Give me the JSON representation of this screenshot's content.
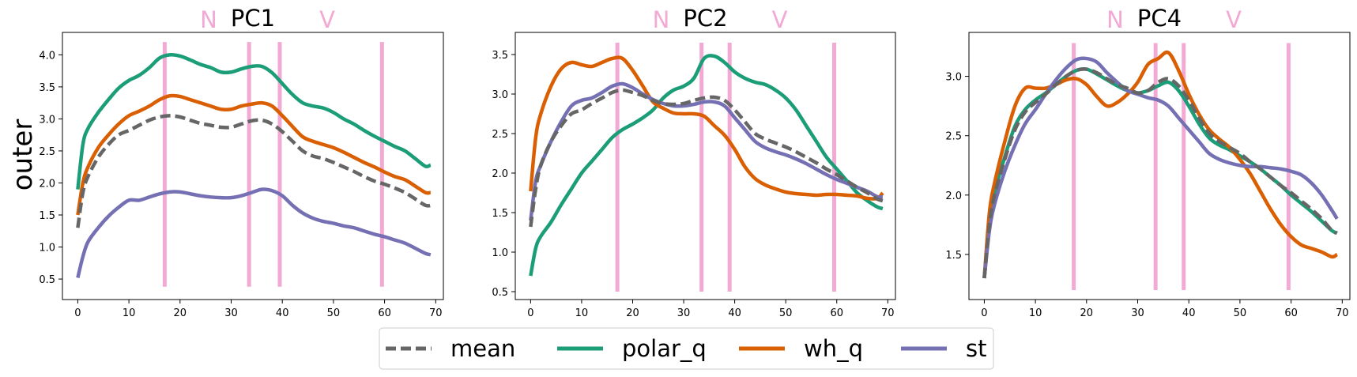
{
  "figure": {
    "ylabel": "outer",
    "annotation_letters": [
      "N",
      "V"
    ],
    "colors": {
      "mean": "#666666",
      "polar_q": "#1b9e77",
      "wh_q": "#d95f02",
      "st": "#7570b3",
      "marker": "#f2a9d4"
    }
  },
  "chart_data": [
    {
      "type": "line",
      "title": "PC1",
      "xlim": [
        -3,
        71.5
      ],
      "ylim": [
        0.18,
        4.35
      ],
      "xticks": [
        0,
        10,
        20,
        30,
        40,
        50,
        60,
        70
      ],
      "yticks": [
        0.5,
        1.0,
        1.5,
        2.0,
        2.5,
        3.0,
        3.5,
        4.0
      ],
      "ytick_labels": [
        "0.5",
        "1.0",
        "1.5",
        "2.0",
        "2.5",
        "3.0",
        "3.5",
        "4.0"
      ],
      "vlines": [
        17,
        33.5,
        39.5,
        59.5
      ],
      "vline_range": [
        0.38,
        4.2
      ],
      "x": [
        0,
        1,
        2,
        4,
        6,
        8,
        10,
        12,
        14,
        16,
        18,
        20,
        22,
        24,
        26,
        28,
        30,
        32,
        34,
        36,
        38,
        40,
        42,
        44,
        46,
        48,
        50,
        52,
        54,
        56,
        58,
        60,
        62,
        64,
        66,
        68,
        69
      ],
      "series": [
        {
          "name": "mean",
          "style": "dashed",
          "values": [
            1.3,
            1.85,
            2.1,
            2.4,
            2.6,
            2.75,
            2.82,
            2.9,
            2.98,
            3.03,
            3.05,
            3.03,
            2.98,
            2.93,
            2.9,
            2.87,
            2.87,
            2.92,
            2.97,
            2.98,
            2.92,
            2.8,
            2.65,
            2.5,
            2.42,
            2.38,
            2.32,
            2.25,
            2.18,
            2.1,
            2.03,
            1.98,
            1.92,
            1.85,
            1.75,
            1.65,
            1.65
          ]
        },
        {
          "name": "polar_q",
          "style": "solid",
          "values": [
            1.9,
            2.6,
            2.85,
            3.1,
            3.3,
            3.48,
            3.6,
            3.68,
            3.8,
            3.95,
            4.0,
            3.98,
            3.92,
            3.85,
            3.8,
            3.73,
            3.73,
            3.78,
            3.82,
            3.82,
            3.72,
            3.55,
            3.38,
            3.25,
            3.2,
            3.17,
            3.1,
            3.0,
            2.92,
            2.82,
            2.73,
            2.65,
            2.57,
            2.5,
            2.38,
            2.26,
            2.28
          ]
        },
        {
          "name": "wh_q",
          "style": "solid",
          "values": [
            1.5,
            2.0,
            2.25,
            2.55,
            2.75,
            2.92,
            3.05,
            3.12,
            3.2,
            3.3,
            3.36,
            3.35,
            3.3,
            3.25,
            3.2,
            3.15,
            3.15,
            3.2,
            3.23,
            3.25,
            3.2,
            3.05,
            2.88,
            2.72,
            2.65,
            2.6,
            2.55,
            2.48,
            2.4,
            2.32,
            2.25,
            2.17,
            2.1,
            2.05,
            1.95,
            1.85,
            1.85
          ]
        },
        {
          "name": "st",
          "style": "solid",
          "values": [
            0.52,
            0.85,
            1.08,
            1.3,
            1.48,
            1.62,
            1.73,
            1.73,
            1.78,
            1.83,
            1.86,
            1.86,
            1.83,
            1.8,
            1.78,
            1.77,
            1.77,
            1.8,
            1.85,
            1.9,
            1.88,
            1.8,
            1.65,
            1.53,
            1.45,
            1.4,
            1.37,
            1.33,
            1.3,
            1.25,
            1.2,
            1.16,
            1.11,
            1.06,
            0.98,
            0.9,
            0.88
          ]
        }
      ]
    },
    {
      "type": "line",
      "title": "PC2",
      "xlim": [
        -3,
        71.5
      ],
      "ylim": [
        0.4,
        3.78
      ],
      "xticks": [
        0,
        10,
        20,
        30,
        40,
        50,
        60,
        70
      ],
      "yticks": [
        0.5,
        1.0,
        1.5,
        2.0,
        2.5,
        3.0,
        3.5
      ],
      "ytick_labels": [
        "0.5",
        "1.0",
        "1.5",
        "2.0",
        "2.5",
        "3.0",
        "3.5"
      ],
      "vlines": [
        17,
        33.5,
        39,
        59.5
      ],
      "vline_range": [
        0.5,
        3.65
      ],
      "x": [
        0,
        1,
        2,
        4,
        6,
        8,
        10,
        12,
        14,
        16,
        18,
        20,
        22,
        24,
        26,
        28,
        30,
        32,
        34,
        36,
        38,
        40,
        42,
        44,
        46,
        48,
        50,
        52,
        54,
        56,
        58,
        60,
        62,
        64,
        66,
        68,
        69
      ],
      "series": [
        {
          "name": "mean",
          "style": "dashed",
          "values": [
            1.32,
            1.8,
            2.1,
            2.4,
            2.6,
            2.75,
            2.8,
            2.88,
            2.95,
            3.02,
            3.05,
            3.02,
            2.98,
            2.92,
            2.88,
            2.87,
            2.88,
            2.92,
            2.95,
            2.96,
            2.92,
            2.8,
            2.65,
            2.5,
            2.43,
            2.38,
            2.33,
            2.27,
            2.2,
            2.13,
            2.05,
            1.98,
            1.9,
            1.82,
            1.75,
            1.67,
            1.65
          ]
        },
        {
          "name": "polar_q",
          "style": "solid",
          "values": [
            0.7,
            1.05,
            1.2,
            1.38,
            1.6,
            1.8,
            2.0,
            2.15,
            2.3,
            2.45,
            2.55,
            2.62,
            2.7,
            2.8,
            2.95,
            3.05,
            3.1,
            3.2,
            3.45,
            3.48,
            3.4,
            3.28,
            3.2,
            3.15,
            3.12,
            3.05,
            2.95,
            2.8,
            2.6,
            2.4,
            2.2,
            2.05,
            1.9,
            1.75,
            1.65,
            1.57,
            1.55
          ]
        },
        {
          "name": "wh_q",
          "style": "solid",
          "values": [
            1.77,
            2.45,
            2.75,
            3.1,
            3.32,
            3.4,
            3.37,
            3.35,
            3.4,
            3.45,
            3.45,
            3.3,
            3.1,
            2.9,
            2.82,
            2.76,
            2.75,
            2.75,
            2.72,
            2.6,
            2.48,
            2.3,
            2.08,
            1.93,
            1.85,
            1.8,
            1.76,
            1.74,
            1.73,
            1.72,
            1.73,
            1.73,
            1.72,
            1.71,
            1.68,
            1.68,
            1.75
          ]
        },
        {
          "name": "st",
          "style": "solid",
          "values": [
            1.4,
            1.9,
            2.1,
            2.4,
            2.65,
            2.85,
            2.92,
            2.95,
            3.02,
            3.1,
            3.13,
            3.08,
            3.0,
            2.93,
            2.88,
            2.85,
            2.85,
            2.87,
            2.9,
            2.9,
            2.85,
            2.7,
            2.55,
            2.4,
            2.32,
            2.27,
            2.23,
            2.18,
            2.12,
            2.05,
            1.98,
            1.92,
            1.87,
            1.82,
            1.77,
            1.7,
            1.7
          ]
        }
      ]
    },
    {
      "type": "line",
      "title": "PC4",
      "xlim": [
        -3,
        71.5
      ],
      "ylim": [
        1.12,
        3.37
      ],
      "xticks": [
        0,
        10,
        20,
        30,
        40,
        50,
        60,
        70
      ],
      "yticks": [
        1.5,
        2.0,
        2.5,
        3.0
      ],
      "ytick_labels": [
        "1.5",
        "2.0",
        "2.5",
        "3.0"
      ],
      "vlines": [
        17.5,
        33.5,
        39,
        59.5
      ],
      "vline_range": [
        1.2,
        3.28
      ],
      "x": [
        0,
        1,
        2,
        4,
        6,
        8,
        10,
        12,
        14,
        16,
        18,
        20,
        22,
        24,
        26,
        28,
        30,
        32,
        34,
        36,
        38,
        40,
        42,
        44,
        46,
        48,
        50,
        52,
        54,
        56,
        58,
        60,
        62,
        64,
        66,
        68,
        69
      ],
      "series": [
        {
          "name": "mean",
          "style": "dashed",
          "values": [
            1.3,
            1.75,
            2.0,
            2.3,
            2.55,
            2.7,
            2.78,
            2.85,
            2.93,
            3.0,
            3.05,
            3.06,
            3.03,
            2.98,
            2.93,
            2.9,
            2.86,
            2.88,
            2.95,
            2.98,
            2.92,
            2.8,
            2.65,
            2.52,
            2.45,
            2.4,
            2.35,
            2.28,
            2.22,
            2.15,
            2.08,
            2.02,
            1.95,
            1.88,
            1.8,
            1.7,
            1.68
          ]
        },
        {
          "name": "polar_q",
          "style": "solid",
          "values": [
            1.3,
            1.75,
            2.02,
            2.32,
            2.58,
            2.72,
            2.8,
            2.86,
            2.93,
            3.0,
            3.05,
            3.06,
            3.02,
            2.97,
            2.92,
            2.88,
            2.86,
            2.88,
            2.92,
            2.95,
            2.88,
            2.75,
            2.6,
            2.48,
            2.42,
            2.38,
            2.33,
            2.28,
            2.22,
            2.15,
            2.08,
            2.0,
            1.93,
            1.86,
            1.78,
            1.7,
            1.68
          ]
        },
        {
          "name": "wh_q",
          "style": "solid",
          "values": [
            1.3,
            1.85,
            2.1,
            2.45,
            2.75,
            2.9,
            2.9,
            2.9,
            2.93,
            2.97,
            2.98,
            2.93,
            2.83,
            2.75,
            2.78,
            2.85,
            2.95,
            3.1,
            3.15,
            3.2,
            3.05,
            2.85,
            2.68,
            2.55,
            2.47,
            2.4,
            2.3,
            2.18,
            2.03,
            1.88,
            1.75,
            1.65,
            1.58,
            1.55,
            1.52,
            1.48,
            1.5
          ]
        },
        {
          "name": "st",
          "style": "solid",
          "values": [
            1.3,
            1.7,
            1.92,
            2.2,
            2.42,
            2.6,
            2.72,
            2.85,
            2.97,
            3.07,
            3.14,
            3.15,
            3.12,
            3.03,
            2.95,
            2.88,
            2.85,
            2.82,
            2.8,
            2.75,
            2.65,
            2.55,
            2.45,
            2.35,
            2.3,
            2.27,
            2.25,
            2.24,
            2.24,
            2.23,
            2.22,
            2.2,
            2.17,
            2.1,
            2.0,
            1.87,
            1.8
          ]
        }
      ]
    }
  ],
  "legend": {
    "placement": "bottom-center",
    "entries": [
      "mean",
      "polar_q",
      "wh_q",
      "st"
    ]
  }
}
